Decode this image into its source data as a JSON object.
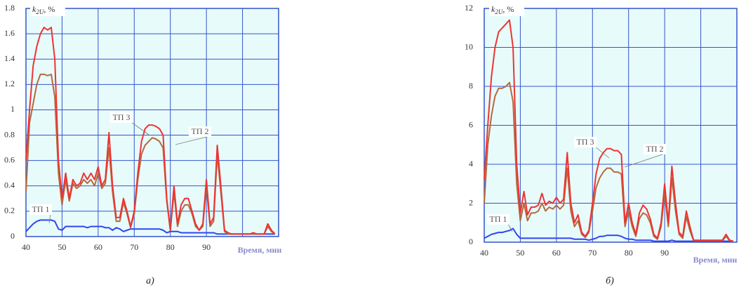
{
  "chart_data": [
    {
      "type": "line",
      "caption": "а)",
      "y_label": {
        "main": "k",
        "sub": "2U",
        "rest": ", %"
      },
      "x_label": "Время, мин",
      "x": [
        40,
        41,
        42,
        43,
        44,
        45,
        46,
        47,
        48,
        49,
        50,
        51,
        52,
        53,
        54,
        55,
        56,
        57,
        58,
        59,
        60,
        61,
        62,
        63,
        64,
        65,
        66,
        67,
        68,
        69,
        70,
        71,
        72,
        73,
        74,
        75,
        76,
        77,
        78,
        79,
        80,
        81,
        82,
        83,
        84,
        85,
        86,
        87,
        88,
        89,
        90,
        91,
        92,
        93,
        94,
        95,
        96,
        97,
        98,
        99,
        100,
        101,
        102,
        103,
        104,
        105,
        106,
        107,
        108,
        109
      ],
      "xlim": [
        40,
        110
      ],
      "xticks": [
        40,
        50,
        60,
        70,
        80,
        90
      ],
      "ylim": [
        0,
        1.8
      ],
      "yticks": [
        0,
        0.2,
        0.4,
        0.6,
        0.8,
        1,
        1.2,
        1.4,
        1.6,
        1.8
      ],
      "grid": true,
      "series": [
        {
          "name": "ТП 1",
          "color": "#3344ee",
          "values": [
            0.04,
            0.07,
            0.1,
            0.12,
            0.13,
            0.13,
            0.13,
            0.13,
            0.12,
            0.06,
            0.05,
            0.08,
            0.08,
            0.08,
            0.08,
            0.08,
            0.08,
            0.07,
            0.08,
            0.08,
            0.08,
            0.08,
            0.07,
            0.07,
            0.05,
            0.07,
            0.06,
            0.04,
            0.05,
            0.06,
            0.06,
            0.06,
            0.06,
            0.06,
            0.06,
            0.06,
            0.06,
            0.06,
            0.05,
            0.03,
            0.04,
            0.04,
            0.04,
            0.03,
            0.03,
            0.03,
            0.03,
            0.03,
            0.03,
            0.03,
            0.03,
            0.03,
            0.03,
            0.02,
            0.02,
            0.02,
            0.02,
            0.02,
            0.02,
            0.02,
            0.02,
            0.02,
            0.02,
            0.02,
            0.02,
            0.02,
            0.02,
            0.02,
            0.02,
            0.02
          ]
        },
        {
          "name": "ТП 2",
          "color": "#b36b3e",
          "values": [
            0.35,
            0.9,
            1.05,
            1.2,
            1.28,
            1.28,
            1.27,
            1.28,
            1.1,
            0.5,
            0.25,
            0.45,
            0.28,
            0.42,
            0.38,
            0.4,
            0.45,
            0.42,
            0.45,
            0.4,
            0.5,
            0.38,
            0.42,
            0.7,
            0.35,
            0.12,
            0.12,
            0.27,
            0.18,
            0.07,
            0.18,
            0.45,
            0.65,
            0.72,
            0.75,
            0.78,
            0.77,
            0.75,
            0.7,
            0.28,
            0.05,
            0.35,
            0.08,
            0.2,
            0.25,
            0.25,
            0.18,
            0.08,
            0.05,
            0.08,
            0.4,
            0.08,
            0.12,
            0.65,
            0.35,
            0.04,
            0.02,
            0.02,
            0.02,
            0.02,
            0.02,
            0.02,
            0.02,
            0.02,
            0.02,
            0.02,
            0.02,
            0.08,
            0.04,
            0.02
          ]
        },
        {
          "name": "ТП 3",
          "color": "#ee3333",
          "values": [
            0.6,
            1.0,
            1.35,
            1.5,
            1.6,
            1.65,
            1.63,
            1.65,
            1.4,
            0.6,
            0.3,
            0.5,
            0.3,
            0.45,
            0.4,
            0.42,
            0.5,
            0.45,
            0.5,
            0.45,
            0.55,
            0.4,
            0.45,
            0.82,
            0.4,
            0.15,
            0.15,
            0.3,
            0.2,
            0.08,
            0.2,
            0.5,
            0.75,
            0.85,
            0.88,
            0.88,
            0.87,
            0.85,
            0.8,
            0.3,
            0.05,
            0.4,
            0.1,
            0.25,
            0.3,
            0.3,
            0.2,
            0.1,
            0.05,
            0.1,
            0.45,
            0.1,
            0.15,
            0.72,
            0.4,
            0.05,
            0.03,
            0.02,
            0.02,
            0.02,
            0.02,
            0.02,
            0.02,
            0.03,
            0.02,
            0.02,
            0.02,
            0.1,
            0.05,
            0.02
          ]
        }
      ]
    },
    {
      "type": "line",
      "caption": "б)",
      "y_label": {
        "main": "k",
        "sub": "2U",
        "rest": ", %"
      },
      "x_label": "Время, мин",
      "x": [
        40,
        41,
        42,
        43,
        44,
        45,
        46,
        47,
        48,
        49,
        50,
        51,
        52,
        53,
        54,
        55,
        56,
        57,
        58,
        59,
        60,
        61,
        62,
        63,
        64,
        65,
        66,
        67,
        68,
        69,
        70,
        71,
        72,
        73,
        74,
        75,
        76,
        77,
        78,
        79,
        80,
        81,
        82,
        83,
        84,
        85,
        86,
        87,
        88,
        89,
        90,
        91,
        92,
        93,
        94,
        95,
        96,
        97,
        98,
        99,
        100,
        101,
        102,
        103,
        104,
        105,
        106,
        107,
        108,
        109
      ],
      "xlim": [
        40,
        110
      ],
      "xticks": [
        40,
        50,
        60,
        70,
        80,
        90
      ],
      "ylim": [
        0,
        12
      ],
      "yticks": [
        0,
        2,
        4,
        6,
        8,
        10,
        12
      ],
      "grid": true,
      "series": [
        {
          "name": "ТП 1",
          "color": "#3344ee",
          "values": [
            0.2,
            0.3,
            0.4,
            0.45,
            0.5,
            0.5,
            0.55,
            0.6,
            0.7,
            0.4,
            0.2,
            0.2,
            0.2,
            0.2,
            0.2,
            0.2,
            0.2,
            0.2,
            0.2,
            0.2,
            0.2,
            0.2,
            0.2,
            0.2,
            0.2,
            0.15,
            0.15,
            0.15,
            0.15,
            0.1,
            0.15,
            0.2,
            0.3,
            0.3,
            0.35,
            0.35,
            0.35,
            0.35,
            0.3,
            0.2,
            0.15,
            0.15,
            0.1,
            0.1,
            0.1,
            0.1,
            0.1,
            0.05,
            0.05,
            0.05,
            0.05,
            0.05,
            0.1,
            0.05,
            0.05,
            0.05,
            0.05,
            0.05,
            0.05,
            0.05,
            0.05,
            0.05,
            0.05,
            0.05,
            0.05,
            0.05,
            0.05,
            0.05,
            0.05,
            0.05
          ]
        },
        {
          "name": "ТП 2",
          "color": "#b36b3e",
          "values": [
            2,
            5,
            6.5,
            7.5,
            7.9,
            7.9,
            8,
            8.2,
            7.2,
            3,
            1.1,
            2,
            1.1,
            1.5,
            1.5,
            1.6,
            2,
            1.6,
            1.8,
            1.7,
            1.9,
            1.7,
            1.9,
            3.8,
            1.6,
            0.8,
            1.1,
            0.4,
            0.25,
            0.5,
            1.6,
            2.8,
            3.3,
            3.6,
            3.8,
            3.8,
            3.6,
            3.6,
            3.5,
            0.8,
            1.6,
            0.8,
            0.3,
            1.2,
            1.5,
            1.4,
            1,
            0.3,
            0.15,
            0.8,
            2.5,
            0.8,
            3.3,
            1.6,
            0.4,
            0.2,
            1.3,
            0.6,
            0.08,
            0.08,
            0.08,
            0.08,
            0.08,
            0.08,
            0.08,
            0.08,
            0.08,
            0.3,
            0.08,
            0.04
          ]
        },
        {
          "name": "ТП 3",
          "color": "#ee3333",
          "values": [
            3.2,
            6,
            8.5,
            10,
            10.8,
            11,
            11.2,
            11.4,
            10,
            4,
            1.5,
            2.6,
            1.4,
            1.8,
            1.8,
            1.9,
            2.5,
            1.9,
            2.1,
            2,
            2.3,
            2,
            2.2,
            4.6,
            2,
            1,
            1.4,
            0.5,
            0.3,
            0.6,
            2,
            3.5,
            4.3,
            4.6,
            4.8,
            4.8,
            4.7,
            4.7,
            4.5,
            1,
            2,
            1,
            0.4,
            1.5,
            1.9,
            1.7,
            1.2,
            0.4,
            0.2,
            1,
            3,
            1,
            3.9,
            2,
            0.5,
            0.3,
            1.6,
            0.8,
            0.1,
            0.1,
            0.1,
            0.1,
            0.1,
            0.1,
            0.1,
            0.1,
            0.1,
            0.4,
            0.1,
            0.05
          ]
        }
      ]
    }
  ]
}
